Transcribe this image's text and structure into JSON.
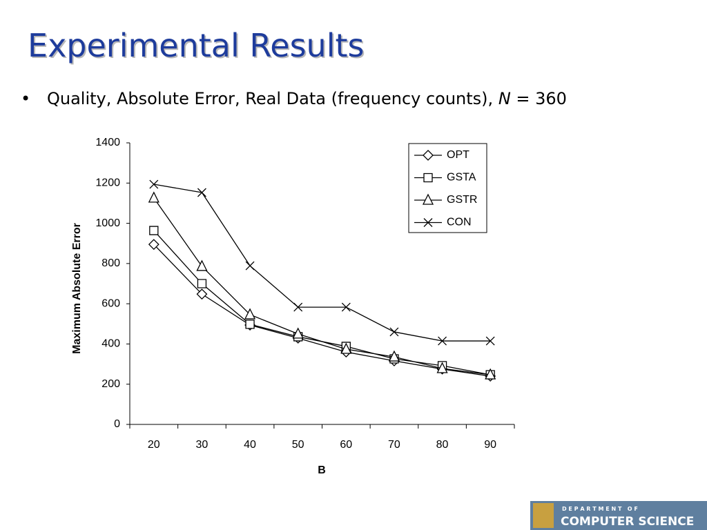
{
  "slide": {
    "title": "Experimental Results",
    "bullet": [
      "Quality, Absolute Error, Real Data (frequency counts),",
      "N",
      "= 360"
    ],
    "logo": [
      "D E P A R T M E N T   O F",
      "COMPUTER SCIENCE"
    ]
  },
  "chart_data": {
    "type": "line",
    "xlabel": "B",
    "ylabel": "Maximum Absolute Error",
    "categories": [
      "20",
      "30",
      "40",
      "50",
      "60",
      "70",
      "80",
      "90"
    ],
    "series": [
      {
        "name": "OPT",
        "color": "#000000",
        "marker": "diamond",
        "values": [
          895,
          648,
          494,
          429,
          360,
          316,
          275,
          240
        ]
      },
      {
        "name": "GSTA",
        "color": "#000000",
        "marker": "square",
        "values": [
          964,
          700,
          498,
          436,
          388,
          326,
          292,
          247
        ]
      },
      {
        "name": "GSTR",
        "color": "#000000",
        "marker": "triangle",
        "values": [
          1126,
          786,
          546,
          450,
          374,
          336,
          278,
          247
        ]
      },
      {
        "name": "CON",
        "color": "#000000",
        "marker": "x",
        "values": [
          1194,
          1153,
          789,
          583,
          583,
          460,
          415,
          415
        ]
      }
    ],
    "ylim": [
      0,
      1400
    ],
    "yticks": [
      0,
      200,
      400,
      600,
      800,
      1000,
      1200,
      1400
    ],
    "grid": false,
    "legend": "upper right"
  }
}
